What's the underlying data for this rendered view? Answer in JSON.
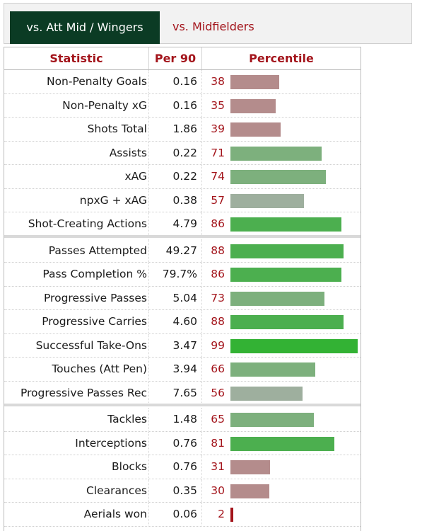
{
  "tabs": [
    {
      "label": "vs. Att Mid / Wingers",
      "active": true
    },
    {
      "label": "vs. Midfielders",
      "active": false
    }
  ],
  "chart_data": {
    "type": "table",
    "columns": [
      "Statistic",
      "Per 90",
      "Percentile"
    ],
    "groups": [
      [
        {
          "stat": "Non-Penalty Goals",
          "per90": "0.16",
          "pct": 38
        },
        {
          "stat": "Non-Penalty xG",
          "per90": "0.16",
          "pct": 35
        },
        {
          "stat": "Shots Total",
          "per90": "1.86",
          "pct": 39
        },
        {
          "stat": "Assists",
          "per90": "0.22",
          "pct": 71
        },
        {
          "stat": "xAG",
          "per90": "0.22",
          "pct": 74
        },
        {
          "stat": "npxG + xAG",
          "per90": "0.38",
          "pct": 57
        },
        {
          "stat": "Shot-Creating Actions",
          "per90": "4.79",
          "pct": 86
        }
      ],
      [
        {
          "stat": "Passes Attempted",
          "per90": "49.27",
          "pct": 88
        },
        {
          "stat": "Pass Completion %",
          "per90": "79.7%",
          "pct": 86
        },
        {
          "stat": "Progressive Passes",
          "per90": "5.04",
          "pct": 73
        },
        {
          "stat": "Progressive Carries",
          "per90": "4.60",
          "pct": 88
        },
        {
          "stat": "Successful Take-Ons",
          "per90": "3.47",
          "pct": 99
        },
        {
          "stat": "Touches (Att Pen)",
          "per90": "3.94",
          "pct": 66
        },
        {
          "stat": "Progressive Passes Rec",
          "per90": "7.65",
          "pct": 56
        }
      ],
      [
        {
          "stat": "Tackles",
          "per90": "1.48",
          "pct": 65
        },
        {
          "stat": "Interceptions",
          "per90": "0.76",
          "pct": 81
        },
        {
          "stat": "Blocks",
          "per90": "0.76",
          "pct": 31
        },
        {
          "stat": "Clearances",
          "per90": "0.35",
          "pct": 30
        },
        {
          "stat": "Aerials won",
          "per90": "0.06",
          "pct": 2
        }
      ]
    ],
    "colors": {
      "accent_red": "#a3141b",
      "tab_active_bg": "#0b3b24",
      "bar_low": "#b48c8c",
      "bar_very_low": "#a3141b",
      "bar_mid": "#9eaf9e",
      "bar_high": "#7db07d",
      "bar_elite": "#4caf4f",
      "bar_top": "#33b234"
    }
  }
}
